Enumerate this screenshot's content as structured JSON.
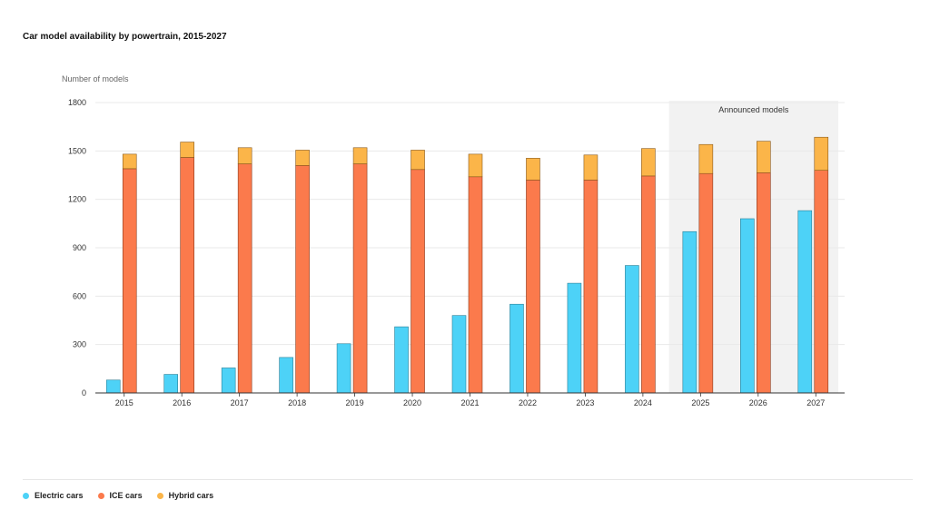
{
  "title": "Car model availability by powertrain, 2015-2027",
  "chart_data": {
    "type": "bar",
    "ylabel": "Number of models",
    "ylim": [
      0,
      1800
    ],
    "yticks": [
      0,
      300,
      600,
      900,
      1200,
      1500,
      1800
    ],
    "grid": true,
    "categories": [
      "2015",
      "2016",
      "2017",
      "2018",
      "2019",
      "2020",
      "2021",
      "2022",
      "2023",
      "2024",
      "2025",
      "2026",
      "2027"
    ],
    "series": [
      {
        "name": "Electric cars",
        "color": "#4dd2f7",
        "stack": "ev",
        "values": [
          80,
          115,
          155,
          220,
          305,
          410,
          480,
          550,
          680,
          790,
          1000,
          1080,
          1130
        ]
      },
      {
        "name": "ICE cars",
        "color": "#fb7a4c",
        "stack": "ice",
        "values": [
          1390,
          1460,
          1420,
          1410,
          1420,
          1385,
          1340,
          1320,
          1320,
          1345,
          1360,
          1365,
          1380
        ]
      },
      {
        "name": "Hybrid cars",
        "color": "#fbb549",
        "stack": "ice",
        "values": [
          90,
          95,
          100,
          95,
          100,
          120,
          140,
          135,
          155,
          170,
          180,
          195,
          205
        ]
      }
    ],
    "shaded_region": {
      "label": "Announced models",
      "categories": [
        "2025",
        "2026",
        "2027"
      ]
    },
    "legend_position": "bottom-left"
  },
  "legend": [
    {
      "label": "Electric cars",
      "color": "#4dd2f7"
    },
    {
      "label": "ICE cars",
      "color": "#fb7a4c"
    },
    {
      "label": "Hybrid cars",
      "color": "#fbb549"
    }
  ]
}
